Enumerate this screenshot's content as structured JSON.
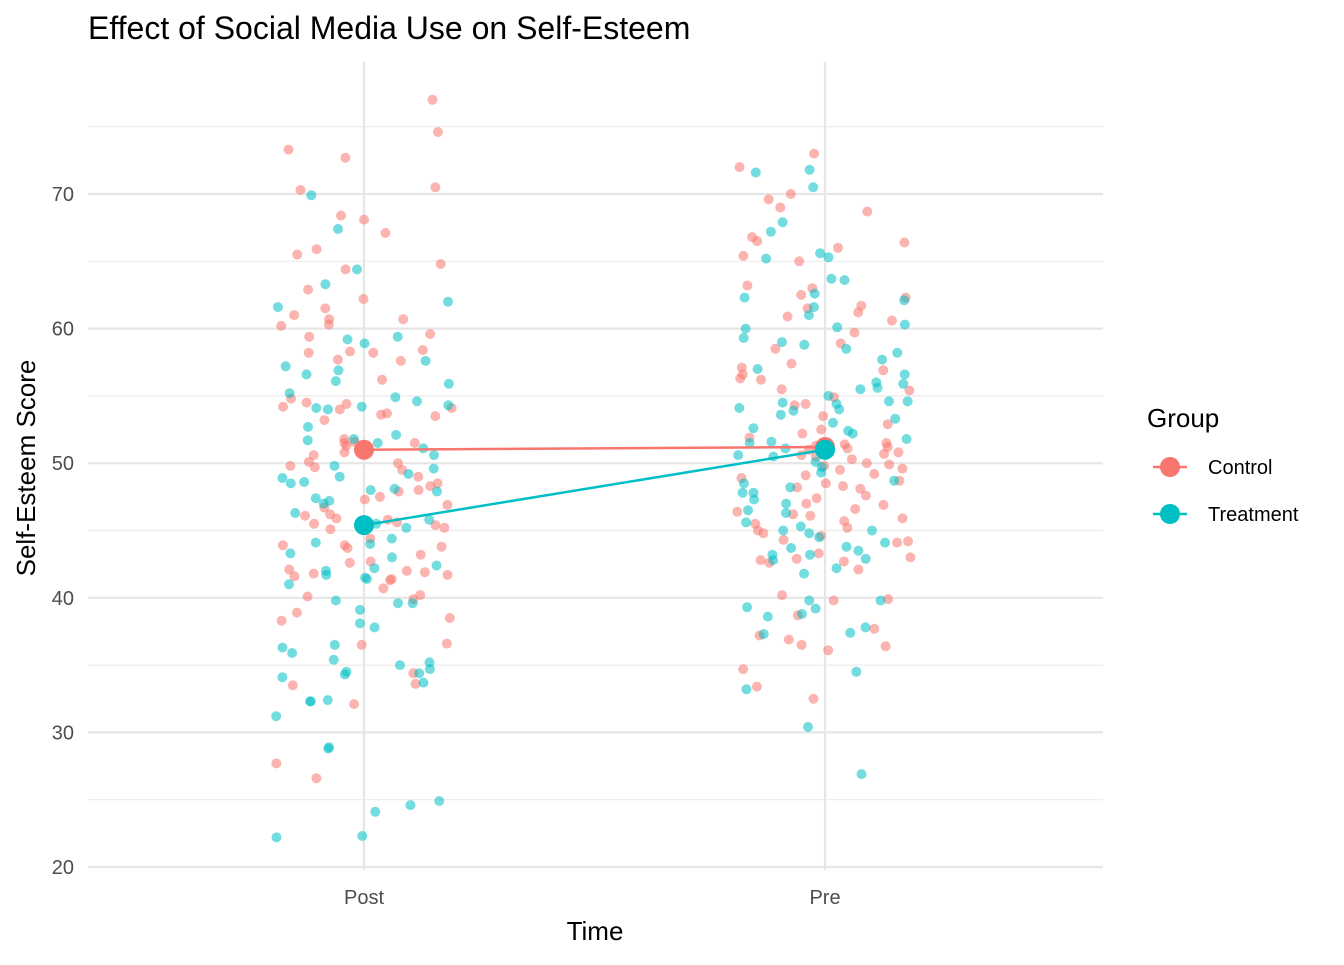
{
  "chart_data": {
    "type": "scatter",
    "title": "Effect of Social Media Use on Self-Esteem",
    "xlabel": "Time",
    "ylabel": "Self-Esteem Score",
    "categories": [
      "Post",
      "Pre"
    ],
    "y_ticks": [
      20,
      30,
      40,
      50,
      60,
      70
    ],
    "y_tick_labels": [
      "20",
      "30",
      "40",
      "50",
      "60",
      "70"
    ],
    "ylim": [
      19.5,
      79.5
    ],
    "grid": true,
    "legend": {
      "title": "Group",
      "position": "right",
      "entries": [
        "Control",
        "Treatment"
      ]
    },
    "colors": {
      "Control": "#F8766D",
      "Treatment": "#00BFC4"
    },
    "means": [
      {
        "group": "Control",
        "values": [
          51.0,
          51.2
        ]
      },
      {
        "group": "Treatment",
        "values": [
          45.4,
          51.0
        ]
      }
    ],
    "points": {
      "Control": {
        "Post": [
          77.0,
          74.6,
          73.3,
          72.7,
          70.5,
          70.3,
          68.4,
          68.1,
          67.1,
          65.9,
          65.5,
          64.8,
          64.4,
          62.9,
          62.2,
          61.5,
          61.0,
          60.7,
          60.7,
          60.3,
          60.2,
          59.6,
          59.4,
          58.4,
          58.3,
          58.2,
          58.2,
          57.7,
          57.6,
          56.2,
          54.8,
          54.5,
          54.4,
          54.2,
          54.1,
          54.0,
          53.7,
          53.6,
          53.5,
          53.2,
          51.8,
          51.6,
          51.5,
          51.5,
          51.3,
          50.8,
          50.6,
          50.1,
          50.0,
          49.8,
          49.7,
          49.5,
          49.0,
          48.5,
          48.3,
          48.0,
          47.9,
          47.5,
          47.3,
          46.9,
          46.7,
          46.2,
          46.1,
          45.9,
          45.8,
          45.6,
          45.5,
          45.4,
          45.2,
          45.1,
          44.4,
          43.9,
          43.9,
          43.8,
          43.7,
          43.2,
          42.7,
          42.6,
          42.1,
          42.0,
          41.9,
          41.8,
          41.7,
          41.6,
          41.4,
          41.3,
          40.7,
          40.2,
          40.1,
          39.9,
          38.9,
          38.5,
          38.3,
          36.6,
          36.5,
          34.4,
          33.6,
          33.5,
          32.1,
          27.7,
          26.6
        ],
        "Pre": [
          73.0,
          72.0,
          70.0,
          69.6,
          69.0,
          68.7,
          66.8,
          66.5,
          66.4,
          66.0,
          65.4,
          65.0,
          63.2,
          63.0,
          62.5,
          62.3,
          61.7,
          61.5,
          61.2,
          60.9,
          60.6,
          59.7,
          58.9,
          58.5,
          57.4,
          57.1,
          56.9,
          56.6,
          56.3,
          56.2,
          55.5,
          55.4,
          54.9,
          54.4,
          54.3,
          53.5,
          52.9,
          52.5,
          52.2,
          51.9,
          51.5,
          51.4,
          51.3,
          51.2,
          51.1,
          51.0,
          50.8,
          50.7,
          50.6,
          50.5,
          50.3,
          50.0,
          49.9,
          49.8,
          49.6,
          49.5,
          49.2,
          49.1,
          48.9,
          48.7,
          48.5,
          48.3,
          48.2,
          48.1,
          47.6,
          47.4,
          47.0,
          46.9,
          46.6,
          46.4,
          46.2,
          46.1,
          45.9,
          45.7,
          45.5,
          45.2,
          45.0,
          44.8,
          44.6,
          44.3,
          44.2,
          44.1,
          43.3,
          43.0,
          42.9,
          42.8,
          42.7,
          42.6,
          42.1,
          40.2,
          39.9,
          39.8,
          38.7,
          37.7,
          37.2,
          36.9,
          36.5,
          36.4,
          36.1,
          34.7,
          33.4,
          32.5
        ]
      },
      "Treatment": {
        "Post": [
          69.9,
          67.4,
          64.4,
          63.3,
          62.0,
          61.6,
          59.4,
          59.2,
          58.9,
          57.6,
          57.2,
          56.9,
          56.6,
          56.1,
          55.9,
          55.2,
          54.9,
          54.6,
          54.3,
          54.2,
          54.1,
          54.0,
          52.7,
          52.1,
          51.8,
          51.7,
          51.5,
          51.1,
          50.6,
          49.8,
          49.6,
          49.2,
          49.0,
          48.9,
          48.6,
          48.5,
          48.1,
          48.0,
          47.9,
          47.4,
          47.2,
          47.0,
          46.3,
          45.8,
          45.5,
          45.2,
          44.4,
          44.1,
          44.0,
          43.3,
          43.0,
          42.4,
          42.2,
          42.0,
          41.7,
          41.5,
          41.4,
          41.0,
          39.8,
          39.6,
          39.6,
          39.1,
          38.1,
          37.8,
          36.5,
          36.3,
          35.9,
          35.4,
          35.2,
          35.0,
          34.7,
          34.5,
          34.4,
          34.3,
          34.1,
          33.7,
          32.4,
          32.3,
          32.3,
          31.2,
          28.9,
          28.8,
          24.9,
          24.6,
          24.1,
          22.3,
          22.2
        ],
        "Pre": [
          71.8,
          71.6,
          70.5,
          67.9,
          67.2,
          65.6,
          65.3,
          65.2,
          63.7,
          63.6,
          62.6,
          62.3,
          62.1,
          61.6,
          61.0,
          60.3,
          60.1,
          60.0,
          59.3,
          59.0,
          58.8,
          58.5,
          58.2,
          57.7,
          57.0,
          56.6,
          56.0,
          55.9,
          55.6,
          55.5,
          55.0,
          54.6,
          54.6,
          54.5,
          54.4,
          54.1,
          54.0,
          53.9,
          53.6,
          53.3,
          53.0,
          52.6,
          52.4,
          52.2,
          51.8,
          51.6,
          51.5,
          51.1,
          50.6,
          50.5,
          50.1,
          49.7,
          49.3,
          48.7,
          48.5,
          48.2,
          47.8,
          47.8,
          47.3,
          47.0,
          46.5,
          46.3,
          45.6,
          45.3,
          45.0,
          45.0,
          44.8,
          44.5,
          44.1,
          43.8,
          43.7,
          43.5,
          43.2,
          43.2,
          42.9,
          42.8,
          42.2,
          41.8,
          39.8,
          39.8,
          39.3,
          39.2,
          38.8,
          38.6,
          37.8,
          37.4,
          37.3,
          34.5,
          33.2,
          30.4,
          26.9
        ]
      }
    }
  }
}
